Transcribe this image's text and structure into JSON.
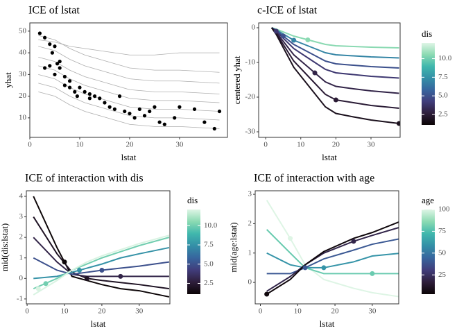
{
  "chart_data": [
    {
      "type": "line",
      "title": "ICE of lstat",
      "x_label": "lstat",
      "y_label": "yhat",
      "xlim": [
        0,
        39.6
      ],
      "ylim": [
        1,
        53.8
      ],
      "xticks": [
        0,
        10,
        20,
        30
      ],
      "yticks": [
        10,
        20,
        30,
        40,
        50
      ],
      "line_color": "#9a9a9a",
      "point_color": "#000000",
      "x": [
        1.7,
        5,
        8,
        11,
        14,
        17,
        20,
        25,
        30,
        38
      ],
      "series": [
        {
          "values": [
            22,
            20,
            16,
            13,
            11,
            9,
            7,
            6,
            6,
            5
          ]
        },
        {
          "values": [
            26,
            24,
            20,
            17,
            15,
            13,
            11,
            10,
            10,
            9
          ]
        },
        {
          "values": [
            30,
            28,
            24,
            21,
            19,
            17,
            15,
            14,
            14,
            13
          ]
        },
        {
          "values": [
            34,
            32,
            28,
            25,
            23,
            21,
            19,
            18,
            18,
            17
          ]
        },
        {
          "values": [
            38,
            36,
            32,
            29,
            27,
            25,
            23,
            22,
            22,
            21
          ]
        },
        {
          "values": [
            43,
            41,
            37,
            34,
            32,
            30,
            28,
            27,
            27,
            26
          ]
        },
        {
          "values": [
            48,
            46,
            42,
            39,
            37,
            35,
            33,
            32,
            32,
            31
          ]
        },
        {
          "values": [
            46,
            45,
            43,
            42,
            41,
            40,
            39,
            39,
            40,
            40
          ]
        }
      ],
      "points_x": [
        2,
        3,
        4,
        4.5,
        5,
        5.5,
        6,
        7,
        7,
        8,
        8,
        9,
        9.5,
        10,
        11,
        12,
        12,
        13,
        14,
        15,
        16,
        17,
        18,
        19,
        20,
        21,
        22,
        23,
        24,
        25,
        26,
        27,
        29,
        30,
        33,
        35,
        37,
        38,
        3,
        4,
        6,
        5
      ],
      "points_y": [
        49,
        47,
        44,
        40,
        43,
        35,
        33,
        29,
        25,
        24,
        27,
        22,
        20,
        24,
        22,
        19,
        21,
        20,
        19,
        17,
        15,
        14,
        20,
        13,
        12,
        10,
        14,
        11,
        13,
        15,
        8,
        7,
        10,
        15,
        14,
        8,
        5,
        13,
        33,
        34,
        36,
        30
      ]
    },
    {
      "type": "line",
      "title": "c-ICE of lstat",
      "x_label": "lstat",
      "y_label": "centered yhat",
      "xlim": [
        -2,
        38.3
      ],
      "ylim": [
        -31.6,
        1.4
      ],
      "xticks": [
        0,
        10,
        20,
        30
      ],
      "yticks": [
        -30,
        -20,
        -10,
        0
      ],
      "color_title": "dis",
      "clim": [
        1.1,
        12.1
      ],
      "cticks": [
        2.5,
        {
          "value": 5,
          "label": "5.0"
        },
        7.5,
        {
          "value": 10,
          "label": "10.0"
        }
      ],
      "colormap": [
        "#0b0405",
        "#2e1e3b",
        "#413d7b",
        "#37659e",
        "#348fa7",
        "#40b7ad",
        "#8bdab2",
        "#def5e5"
      ],
      "x": [
        1.7,
        3,
        5,
        8,
        11,
        14,
        17,
        20,
        25,
        30,
        38
      ],
      "series": [
        {
          "color_value": 10.5,
          "values": [
            0,
            -0.4,
            -1.2,
            -2.4,
            -3.2,
            -4,
            -4.8,
            -5.2,
            -5.4,
            -5.6,
            -5.8
          ],
          "point_x": 12,
          "point_y": -3.5
        },
        {
          "color_value": 7,
          "values": [
            0,
            -0.6,
            -1.8,
            -3.6,
            -4.8,
            -6,
            -7.2,
            -7.8,
            -8.1,
            -8.4,
            -8.7
          ],
          "point_x": 8,
          "point_y": -3.6
        },
        {
          "color_value": 5,
          "values": [
            0,
            -0.8,
            -2.4,
            -4.8,
            -6.4,
            -8,
            -9.6,
            -10.4,
            -10.8,
            -11.2,
            -11.6
          ],
          "point_x": 5,
          "point_y": -2.4
        },
        {
          "color_value": 4,
          "values": [
            0,
            -1,
            -3,
            -6,
            -8,
            -10,
            -12,
            -13,
            -13.5,
            -14,
            -14.5
          ],
          "point_x": 3,
          "point_y": -1
        },
        {
          "color_value": 3,
          "values": [
            0,
            -1.3,
            -3.9,
            -7.8,
            -10.4,
            -13,
            -15.6,
            -16.9,
            -17.6,
            -18.2,
            -18.9
          ],
          "point_x": 14,
          "point_y": -13
        },
        {
          "color_value": 2.5,
          "values": [
            0,
            -1.6,
            -4.8,
            -9.6,
            -12.8,
            -16,
            -19.2,
            -20.8,
            -21.6,
            -22.4,
            -23.2
          ],
          "point_x": 20,
          "point_y": -20.8
        },
        {
          "color_value": 1.8,
          "values": [
            0,
            -1.9,
            -5.7,
            -11.4,
            -15.2,
            -19,
            -22.8,
            -24.7,
            -25.7,
            -26.6,
            -27.6
          ],
          "point_x": 38,
          "point_y": -27.6
        }
      ]
    },
    {
      "type": "line",
      "title": "ICE of interaction with dis",
      "x_label": "lstat",
      "y_label": "mid(dis:lstat)",
      "xlim": [
        -0.2,
        38.2
      ],
      "ylim": [
        -1.24,
        4.27
      ],
      "xticks": [
        0,
        10,
        20,
        30
      ],
      "yticks": [
        -1,
        0,
        1,
        2,
        3,
        4
      ],
      "color_title": "dis",
      "clim": [
        1.1,
        12.1
      ],
      "cticks": [
        2.5,
        {
          "value": 5,
          "label": "5.0"
        },
        7.5,
        {
          "value": 10,
          "label": "10.0"
        }
      ],
      "colormap": [
        "#0b0405",
        "#2e1e3b",
        "#413d7b",
        "#37659e",
        "#348fa7",
        "#40b7ad",
        "#8bdab2",
        "#def5e5"
      ],
      "x": [
        1.7,
        8,
        12,
        16,
        20,
        25,
        30,
        38
      ],
      "series": [
        {
          "color_value": 1.2,
          "values": [
            4,
            1.5,
            0.1,
            -0.1,
            -0.3,
            -0.5,
            -0.6,
            -0.9
          ],
          "point_x": 10,
          "point_y": 0.8
        },
        {
          "color_value": 2,
          "values": [
            3,
            1.2,
            0.3,
            0,
            -0.1,
            -0.2,
            -0.3,
            -0.5
          ],
          "point_x": 16,
          "point_y": 0
        },
        {
          "color_value": 3,
          "values": [
            2,
            0.8,
            0.2,
            0.1,
            0.1,
            0.1,
            0.1,
            0.1
          ],
          "point_x": 25,
          "point_y": 0.1
        },
        {
          "color_value": 5,
          "values": [
            1,
            0.4,
            0.2,
            0.3,
            0.4,
            0.5,
            0.6,
            0.8
          ],
          "point_x": 20,
          "point_y": 0.4
        },
        {
          "color_value": 7.5,
          "values": [
            0,
            0.1,
            0.3,
            0.5,
            0.7,
            1,
            1.2,
            1.5
          ],
          "point_x": 14,
          "point_y": 0.4
        },
        {
          "color_value": 10,
          "values": [
            -0.5,
            0,
            0.4,
            0.7,
            1,
            1.3,
            1.6,
            2
          ],
          "point_x": 5,
          "point_y": -0.25
        },
        {
          "color_value": 12,
          "values": [
            -0.8,
            -0.1,
            0.4,
            0.8,
            1.1,
            1.4,
            1.7,
            2.1
          ],
          "point_x": 3,
          "point_y": -0.5
        }
      ]
    },
    {
      "type": "line",
      "title": "ICE of interaction with age",
      "x_label": "lstat",
      "y_label": "mid(age:lstat)",
      "xlim": [
        -1.4,
        37.1
      ],
      "ylim": [
        -0.73,
        3.12
      ],
      "xticks": [
        0,
        10,
        20,
        30
      ],
      "yticks": [
        0,
        1,
        2,
        3
      ],
      "color_title": "age",
      "clim": [
        2.9,
        100
      ],
      "cticks": [
        25,
        50,
        75,
        100
      ],
      "colormap": [
        "#0b0405",
        "#2e1e3b",
        "#413d7b",
        "#37659e",
        "#348fa7",
        "#40b7ad",
        "#8bdab2",
        "#def5e5"
      ],
      "x": [
        1.7,
        8,
        12,
        17,
        25,
        30,
        38
      ],
      "series": [
        {
          "color_value": 100,
          "values": [
            2.8,
            1.5,
            0.6,
            0.1,
            -0.2,
            -0.35,
            -0.5
          ],
          "point_x": 8,
          "point_y": 1.5
        },
        {
          "color_value": 80,
          "values": [
            1.8,
            1,
            0.5,
            0.3,
            0.3,
            0.3,
            0.3
          ],
          "point_x": 30,
          "point_y": 0.3
        },
        {
          "color_value": 60,
          "values": [
            1,
            0.6,
            0.5,
            0.5,
            0.7,
            0.9,
            1
          ],
          "point_x": 17,
          "point_y": 0.5
        },
        {
          "color_value": 40,
          "values": [
            0.3,
            0.3,
            0.5,
            0.8,
            1.1,
            1.3,
            1.5
          ],
          "point_x": 12,
          "point_y": 0.5
        },
        {
          "color_value": 20,
          "values": [
            -0.3,
            0.2,
            0.6,
            1,
            1.4,
            1.6,
            1.9
          ],
          "point_x": 25,
          "point_y": 1.4
        },
        {
          "color_value": 5,
          "values": [
            -0.4,
            0.1,
            0.6,
            1.05,
            1.5,
            1.7,
            2.1
          ],
          "point_x": 1.7,
          "point_y": -0.4
        }
      ]
    }
  ]
}
